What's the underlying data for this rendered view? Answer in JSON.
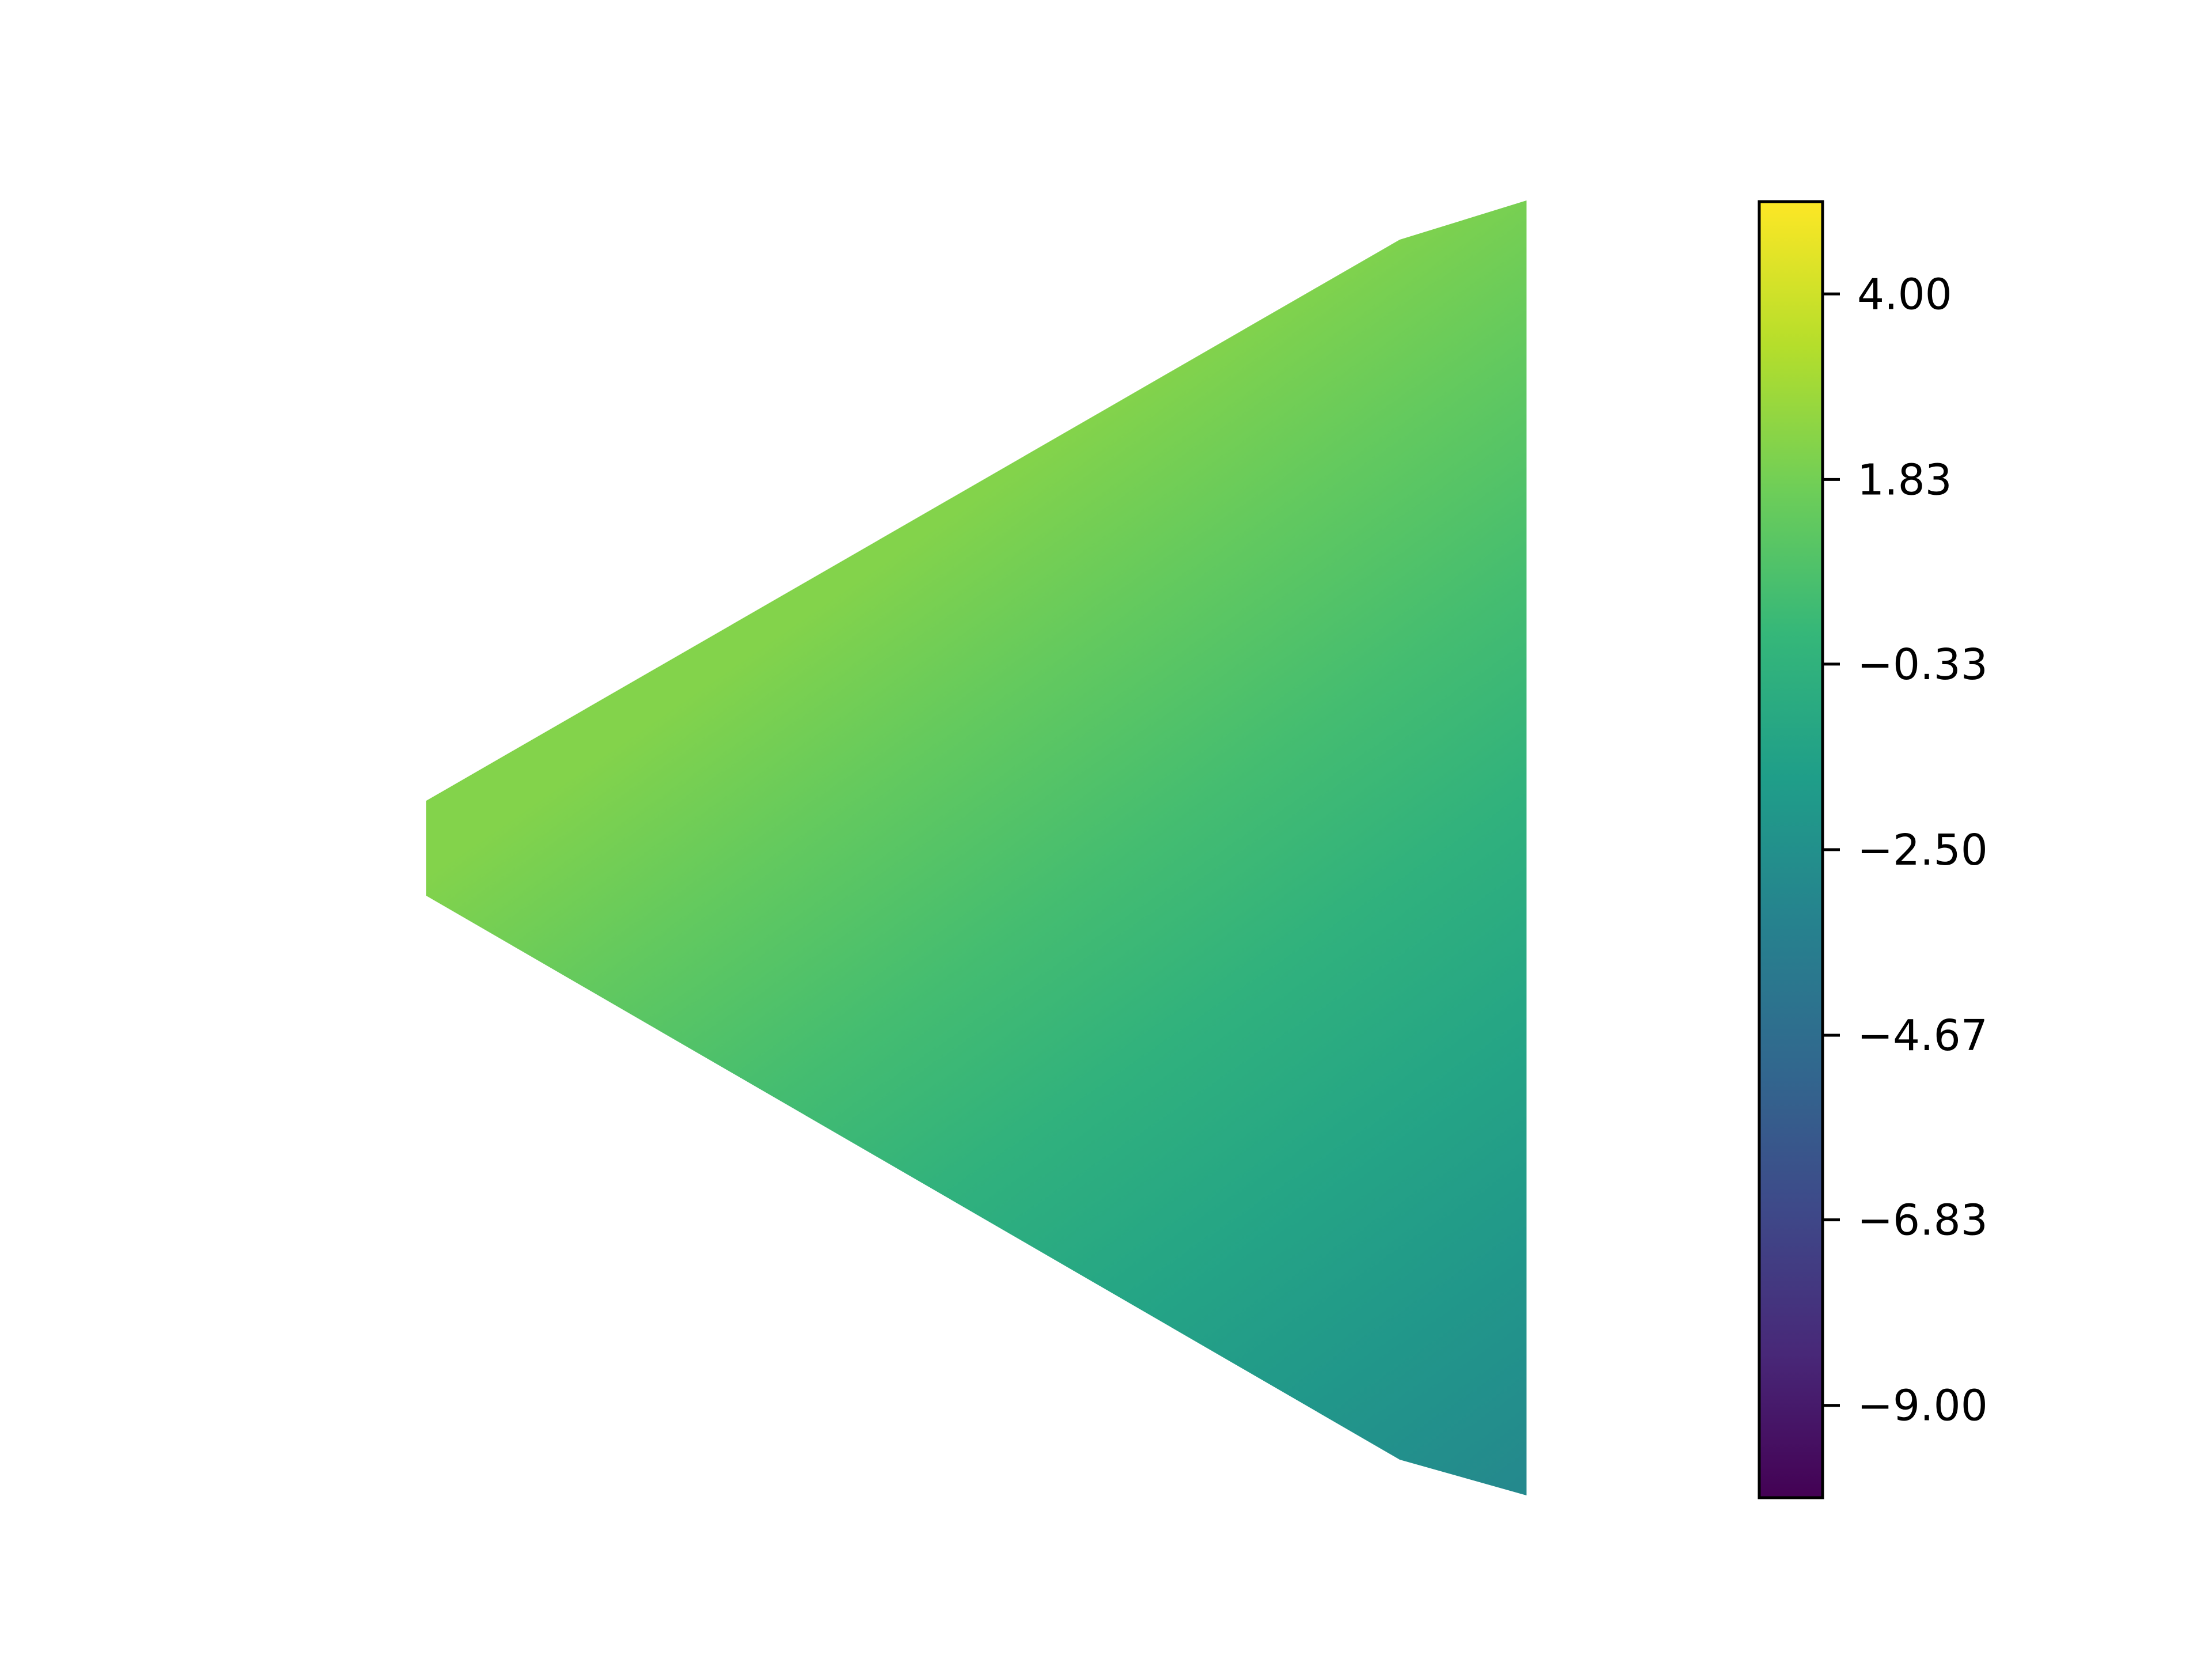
{
  "chart_data": {
    "type": "heatmap",
    "title": "",
    "xlabel": "",
    "ylabel": "",
    "axes_visible": false,
    "colormap": "viridis",
    "colorbar": {
      "vmin": -10.08,
      "vmax": 5.08,
      "ticks": [
        4.0,
        1.83,
        -0.33,
        -2.5,
        -4.67,
        -6.83,
        -9.0
      ],
      "tick_labels": [
        "4.00",
        "1.83",
        "−0.33",
        "−2.50",
        "−4.67",
        "−6.83",
        "−9.00"
      ],
      "placement": "right"
    },
    "field": {
      "description_values": "linear gradient across the shape",
      "top_left_value": 2.2,
      "bottom_right_value": -2.9
    },
    "colors": {
      "viridis_stops": [
        "#440154",
        "#482878",
        "#3e4989",
        "#31688e",
        "#26828e",
        "#1f9e89",
        "#35b779",
        "#6ece58",
        "#b5de2b",
        "#fde725"
      ]
    }
  }
}
